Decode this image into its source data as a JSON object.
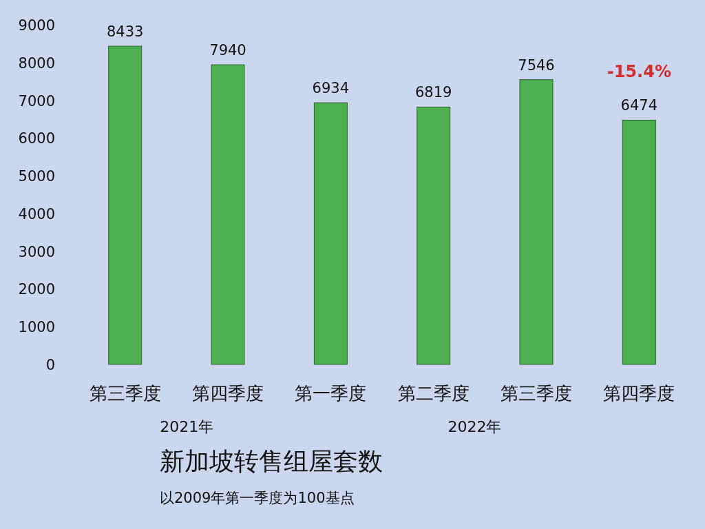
{
  "chart_data": {
    "type": "bar",
    "title": "新加坡转售组屋套数",
    "subtitle": "以2009年第一季度为100基点",
    "categories": [
      "第三季度",
      "第四季度",
      "第一季度",
      "第二季度",
      "第三季度",
      "第四季度"
    ],
    "values": [
      8433,
      7940,
      6934,
      6819,
      7546,
      6474
    ],
    "color": "#4caf50",
    "ylim": [
      0,
      9000
    ],
    "yticks": [
      0,
      1000,
      2000,
      3000,
      4000,
      5000,
      6000,
      7000,
      8000,
      9000
    ],
    "data_labels": true,
    "annotations": [
      "2021年",
      "2022年",
      "-15.4%"
    ]
  }
}
